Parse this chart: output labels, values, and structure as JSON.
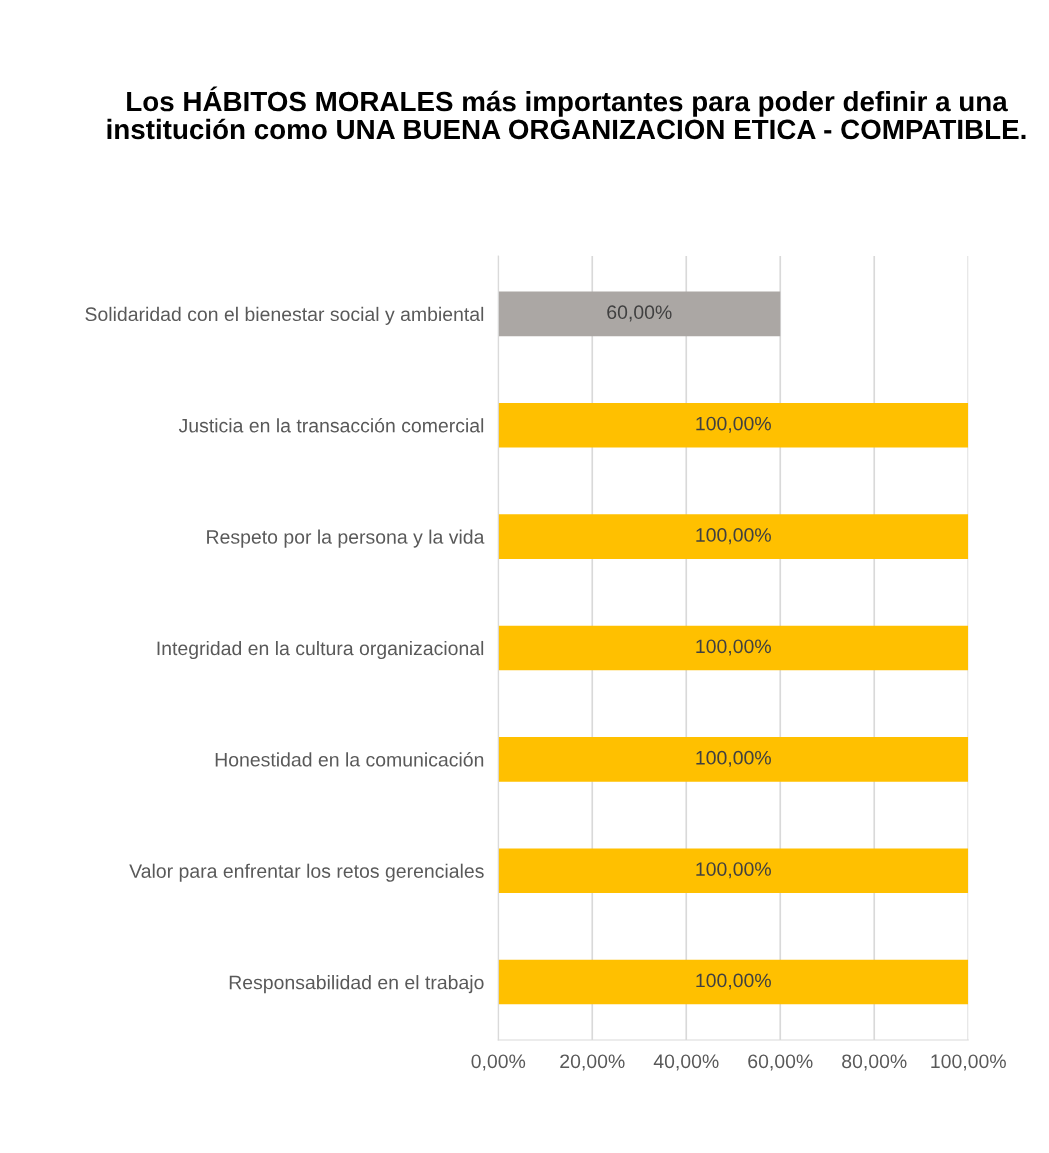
{
  "chart_data": {
    "type": "bar",
    "orientation": "horizontal",
    "title": "Los HÁBITOS MORALES más importantes para poder definir a una institución como UNA BUENA ORGANIZACION ETICA - COMPATIBLE.",
    "categories": [
      "Solidaridad con el bienestar social y ambiental",
      "Justicia en la transacción comercial",
      "Respeto por la persona y la vida",
      "Integridad en la cultura organizacional",
      "Honestidad en la comunicación",
      "Valor para enfrentar los retos gerenciales",
      "Responsabilidad en el trabajo"
    ],
    "values": [
      60,
      100,
      100,
      100,
      100,
      100,
      100
    ],
    "colors": [
      "#aba7a4",
      "#ffc000",
      "#ffc000",
      "#ffc000",
      "#ffc000",
      "#ffc000",
      "#ffc000"
    ],
    "value_labels": [
      "60,00%",
      "100,00%",
      "100,00%",
      "100,00%",
      "100,00%",
      "100,00%",
      "100,00%"
    ],
    "xlim": [
      0,
      100
    ],
    "xticks": [
      {
        "value": 0,
        "label": "0,00%"
      },
      {
        "value": 20,
        "label": "20,00%"
      },
      {
        "value": 40,
        "label": "40,00%"
      },
      {
        "value": 60,
        "label": "60,00%"
      },
      {
        "value": 80,
        "label": "80,00%"
      },
      {
        "value": 100,
        "label": "100,00%"
      }
    ],
    "grid": "x"
  }
}
